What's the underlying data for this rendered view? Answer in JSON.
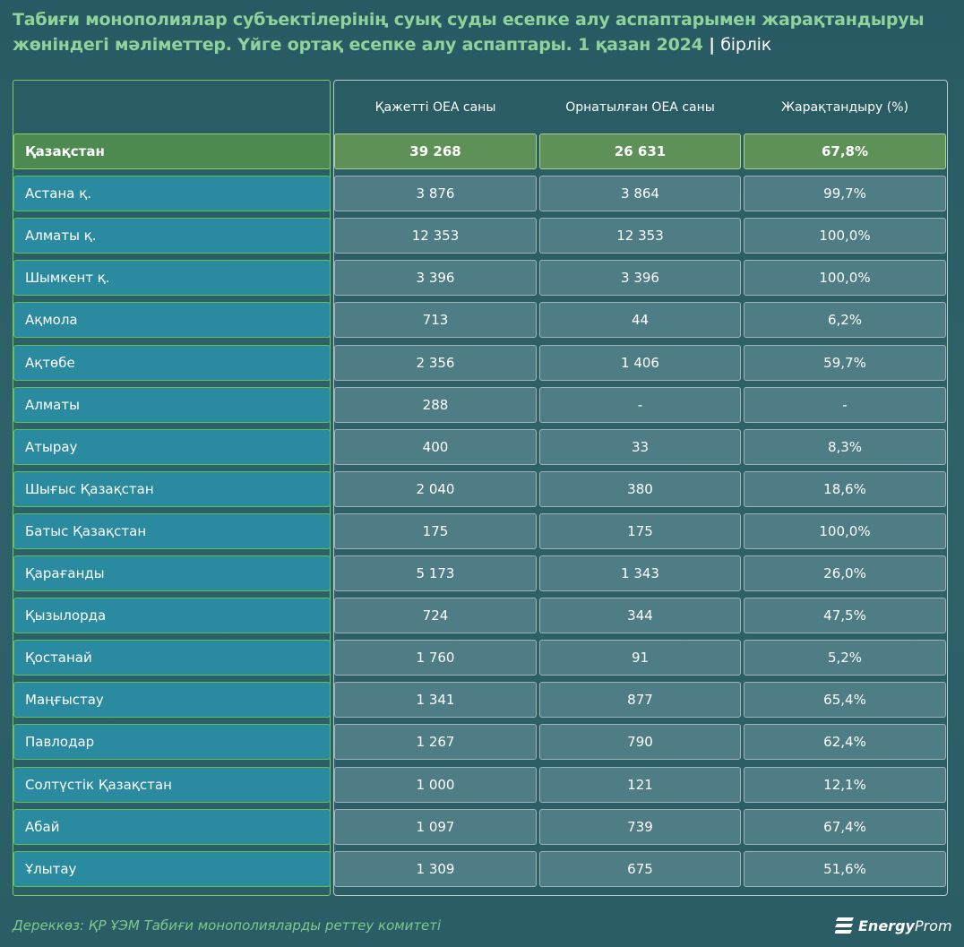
{
  "title": {
    "main": "Табиғи монополиялар субъектілерінің суық суды есепке алу аспаптарымен жарақтандыруы жөніндегі мәліметтер. Үйге ортақ есепке алу аспаптары. 1 қазан 2024",
    "separator": "|",
    "unit": "бірлік"
  },
  "colors": {
    "background": "#2d5a62",
    "title": "#8fd39a",
    "region_cell": "#2a8aa0",
    "value_cell": "#4f7d85",
    "total_row": "#5d9158",
    "accent_border": "#7dc95f"
  },
  "chart_data": {
    "type": "table",
    "columns": [
      "Қажетті ОЕА саны",
      "Орнатылған ОЕА саны",
      "Жарақтандыру (%)"
    ],
    "total": {
      "region": "Қазақстан",
      "required": "39 268",
      "installed": "26 631",
      "percent": "67,8%"
    },
    "rows": [
      {
        "region": "Астана қ.",
        "required": "3 876",
        "installed": "3 864",
        "percent": "99,7%"
      },
      {
        "region": "Алматы қ.",
        "required": "12 353",
        "installed": "12 353",
        "percent": "100,0%"
      },
      {
        "region": "Шымкент қ.",
        "required": "3 396",
        "installed": "3 396",
        "percent": "100,0%"
      },
      {
        "region": "Ақмола",
        "required": "713",
        "installed": "44",
        "percent": "6,2%"
      },
      {
        "region": "Ақтөбе",
        "required": "2 356",
        "installed": "1 406",
        "percent": "59,7%"
      },
      {
        "region": "Алматы",
        "required": "288",
        "installed": "-",
        "percent": "-"
      },
      {
        "region": "Атырау",
        "required": "400",
        "installed": "33",
        "percent": "8,3%"
      },
      {
        "region": "Шығыс Қазақстан",
        "required": "2 040",
        "installed": "380",
        "percent": "18,6%"
      },
      {
        "region": "Батыс Қазақстан",
        "required": "175",
        "installed": "175",
        "percent": "100,0%"
      },
      {
        "region": "Қарағанды",
        "required": "5 173",
        "installed": "1 343",
        "percent": "26,0%"
      },
      {
        "region": "Қызылорда",
        "required": "724",
        "installed": "344",
        "percent": "47,5%"
      },
      {
        "region": "Қостанай",
        "required": "1 760",
        "installed": "91",
        "percent": "5,2%"
      },
      {
        "region": "Маңғыстау",
        "required": "1 341",
        "installed": "877",
        "percent": "65,4%"
      },
      {
        "region": "Павлодар",
        "required": "1 267",
        "installed": "790",
        "percent": "62,4%"
      },
      {
        "region": "Солтүстік Қазақстан",
        "required": "1 000",
        "installed": "121",
        "percent": "12,1%"
      },
      {
        "region": "Абай",
        "required": "1 097",
        "installed": "739",
        "percent": "67,4%"
      },
      {
        "region": "Ұлытау",
        "required": "1 309",
        "installed": "675",
        "percent": "51,6%"
      }
    ]
  },
  "footer": {
    "source": "Дереккөз: ҚР ҰЭМ Табиғи монополияларды реттеу комитеті",
    "logo_bold": "Energy",
    "logo_light": "Prom",
    "logo_icon": "energyprom-logo-icon"
  }
}
